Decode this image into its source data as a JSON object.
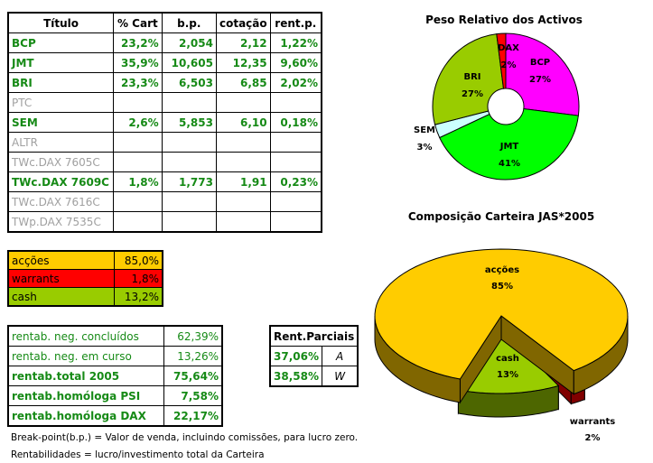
{
  "main_table": {
    "headers": [
      "Título",
      "% Cart",
      "b.p.",
      "cotação",
      "rent.p."
    ],
    "rows": [
      {
        "titulo": "BCP",
        "cart": "23,2%",
        "bp": "2,054",
        "cot": "2,12",
        "rent": "1,22%",
        "active": true
      },
      {
        "titulo": "JMT",
        "cart": "35,9%",
        "bp": "10,605",
        "cot": "12,35",
        "rent": "9,60%",
        "active": true
      },
      {
        "titulo": "BRI",
        "cart": "23,3%",
        "bp": "6,503",
        "cot": "6,85",
        "rent": "2,02%",
        "active": true
      },
      {
        "titulo": "PTC",
        "cart": "",
        "bp": "",
        "cot": "",
        "rent": "",
        "active": false
      },
      {
        "titulo": "SEM",
        "cart": "2,6%",
        "bp": "5,853",
        "cot": "6,10",
        "rent": "0,18%",
        "active": true
      },
      {
        "titulo": "ALTR",
        "cart": "",
        "bp": "",
        "cot": "",
        "rent": "",
        "active": false
      },
      {
        "titulo": "TWc.DAX 7605C",
        "cart": "",
        "bp": "",
        "cot": "",
        "rent": "",
        "active": false
      },
      {
        "titulo": "TWc.DAX 7609C",
        "cart": "1,8%",
        "bp": "1,773",
        "cot": "1,91",
        "rent": "0,23%",
        "active": true
      },
      {
        "titulo": "TWc.DAX 7616C",
        "cart": "",
        "bp": "",
        "cot": "",
        "rent": "",
        "active": false
      },
      {
        "titulo": "TWp.DAX 7535C",
        "cart": "",
        "bp": "",
        "cot": "",
        "rent": "",
        "active": false
      }
    ]
  },
  "composition": [
    {
      "label": "acções",
      "value": "85,0%",
      "color": "#ffcc00"
    },
    {
      "label": "warrants",
      "value": "1,8%",
      "color": "#ff0000"
    },
    {
      "label": "cash",
      "value": "13,2%",
      "color": "#99cc00"
    }
  ],
  "rentabilidade": [
    {
      "label": "rentab. neg. concluídos",
      "value": "62,39%",
      "bold": false
    },
    {
      "label": "rentab. neg. em curso",
      "value": "13,26%",
      "bold": false
    },
    {
      "label": "rentab.total 2005",
      "value": "75,64%",
      "bold": true
    },
    {
      "label": "rentab.homóloga PSI",
      "value": "7,58%",
      "bold": true
    },
    {
      "label": "rentab.homóloga DAX",
      "value": "22,17%",
      "bold": true
    }
  ],
  "rent_parciais": {
    "title": "Rent.Parciais",
    "rows": [
      {
        "value": "37,06%",
        "type": "A"
      },
      {
        "value": "38,58%",
        "type": "W"
      }
    ]
  },
  "notes": [
    "Break-point(b.p.) = Valor de venda, incluindo comissões, para lucro zero.",
    "Rentabilidades = lucro/investimento total da Carteira"
  ],
  "chart_data": [
    {
      "type": "pie",
      "variant": "doughnut",
      "title": "Peso Relativo dos Activos",
      "slices": [
        {
          "label": "BCP",
          "value": 27,
          "display": "27%",
          "color": "#ff00ff"
        },
        {
          "label": "JMT",
          "value": 41,
          "display": "41%",
          "color": "#00ff00"
        },
        {
          "label": "SEM",
          "value": 3,
          "display": "3%",
          "color": "#ccffff"
        },
        {
          "label": "BRI",
          "value": 27,
          "display": "27%",
          "color": "#99cc00"
        },
        {
          "label": "DAX",
          "value": 2,
          "display": "2%",
          "color": "#ff0000"
        }
      ]
    },
    {
      "type": "pie",
      "variant": "3d-exploded",
      "title": "Composição Carteira JAS*2005",
      "slices": [
        {
          "label": "warrants",
          "value": 2,
          "display": "2%",
          "color": "#ff0000",
          "side": "#800000"
        },
        {
          "label": "cash",
          "value": 13,
          "display": "13%",
          "color": "#99cc00",
          "side": "#4d6600"
        },
        {
          "label": "acções",
          "value": 85,
          "display": "85%",
          "color": "#ffcc00",
          "side": "#806600"
        }
      ]
    }
  ]
}
